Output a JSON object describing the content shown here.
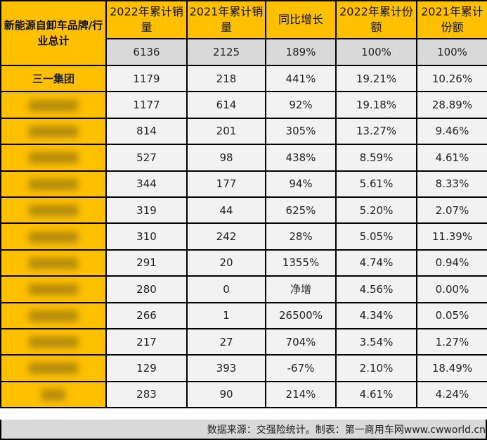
{
  "header": {
    "brand_col": "新能源自卸车品牌/行业总计",
    "columns": [
      "2022年累计销量",
      "2021年累计销量",
      "同比增长",
      "2022年累计份额",
      "2021年累计份额"
    ]
  },
  "total": [
    "6136",
    "2125",
    "189%",
    "100%",
    "100%"
  ],
  "rows": [
    {
      "brand": "三一集团",
      "values": [
        "1179",
        "218",
        "441%",
        "19.21%",
        "10.26%"
      ]
    },
    {
      "brand": "",
      "values": [
        "1177",
        "614",
        "92%",
        "19.18%",
        "28.89%"
      ]
    },
    {
      "brand": "",
      "values": [
        "814",
        "201",
        "305%",
        "13.27%",
        "9.46%"
      ]
    },
    {
      "brand": "",
      "values": [
        "527",
        "98",
        "438%",
        "8.59%",
        "4.61%"
      ]
    },
    {
      "brand": "",
      "values": [
        "344",
        "177",
        "94%",
        "5.61%",
        "8.33%"
      ]
    },
    {
      "brand": "",
      "values": [
        "319",
        "44",
        "625%",
        "5.20%",
        "2.07%"
      ]
    },
    {
      "brand": "",
      "values": [
        "310",
        "242",
        "28%",
        "5.05%",
        "11.39%"
      ]
    },
    {
      "brand": "",
      "values": [
        "291",
        "20",
        "1355%",
        "4.74%",
        "0.94%"
      ]
    },
    {
      "brand": "",
      "values": [
        "280",
        "0",
        "净增",
        "4.56%",
        "0.00%"
      ]
    },
    {
      "brand": "",
      "values": [
        "266",
        "1",
        "26500%",
        "4.34%",
        "0.05%"
      ]
    },
    {
      "brand": "",
      "values": [
        "217",
        "27",
        "704%",
        "3.54%",
        "1.27%"
      ]
    },
    {
      "brand": "",
      "values": [
        "129",
        "393",
        "-67%",
        "2.10%",
        "18.49%"
      ]
    },
    {
      "brand": "",
      "values": [
        "283",
        "90",
        "214%",
        "4.61%",
        "4.24%"
      ]
    }
  ],
  "footer": "数据来源：交强险统计。制表：第一商用车网www.cwworld.cn",
  "colors": {
    "header": "#ffc000",
    "total": "#d9d9d9",
    "cell": "#f2f2f2"
  }
}
